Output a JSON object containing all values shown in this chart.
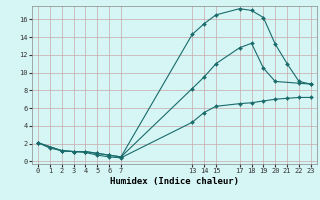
{
  "xlabel": "Humidex (Indice chaleur)",
  "bg_color": "#d6f5f5",
  "line_color": "#1a6b6b",
  "grid_color": "#c8a8a8",
  "xticks": [
    0,
    1,
    2,
    3,
    4,
    5,
    6,
    7,
    13,
    14,
    15,
    17,
    18,
    19,
    20,
    21,
    22,
    23
  ],
  "yticks": [
    0,
    2,
    4,
    6,
    8,
    10,
    12,
    14,
    16
  ],
  "xlim": [
    -0.5,
    23.5
  ],
  "ylim": [
    -0.3,
    17.5
  ],
  "line1_x": [
    0,
    1,
    2,
    3,
    4,
    5,
    6,
    7,
    13,
    14,
    15,
    17,
    18,
    19,
    20,
    21,
    22,
    23
  ],
  "line1_y": [
    2.1,
    1.5,
    1.2,
    1.1,
    1.0,
    0.7,
    0.5,
    0.4,
    4.4,
    5.5,
    6.2,
    6.5,
    6.6,
    6.8,
    7.0,
    7.1,
    7.2,
    7.2
  ],
  "line2_x": [
    0,
    2,
    3,
    4,
    5,
    6,
    7,
    13,
    14,
    15,
    17,
    18,
    19,
    20,
    22,
    23
  ],
  "line2_y": [
    2.1,
    1.2,
    1.1,
    1.1,
    0.9,
    0.7,
    0.5,
    8.2,
    9.5,
    11.0,
    12.8,
    13.3,
    10.5,
    9.0,
    8.8,
    8.7
  ],
  "line3_x": [
    0,
    2,
    3,
    4,
    5,
    6,
    7,
    13,
    14,
    15,
    17,
    18,
    19,
    20,
    21,
    22,
    23
  ],
  "line3_y": [
    2.1,
    1.2,
    1.1,
    1.1,
    0.9,
    0.7,
    0.5,
    14.3,
    15.5,
    16.5,
    17.2,
    17.0,
    16.2,
    13.2,
    11.0,
    9.0,
    8.7
  ]
}
